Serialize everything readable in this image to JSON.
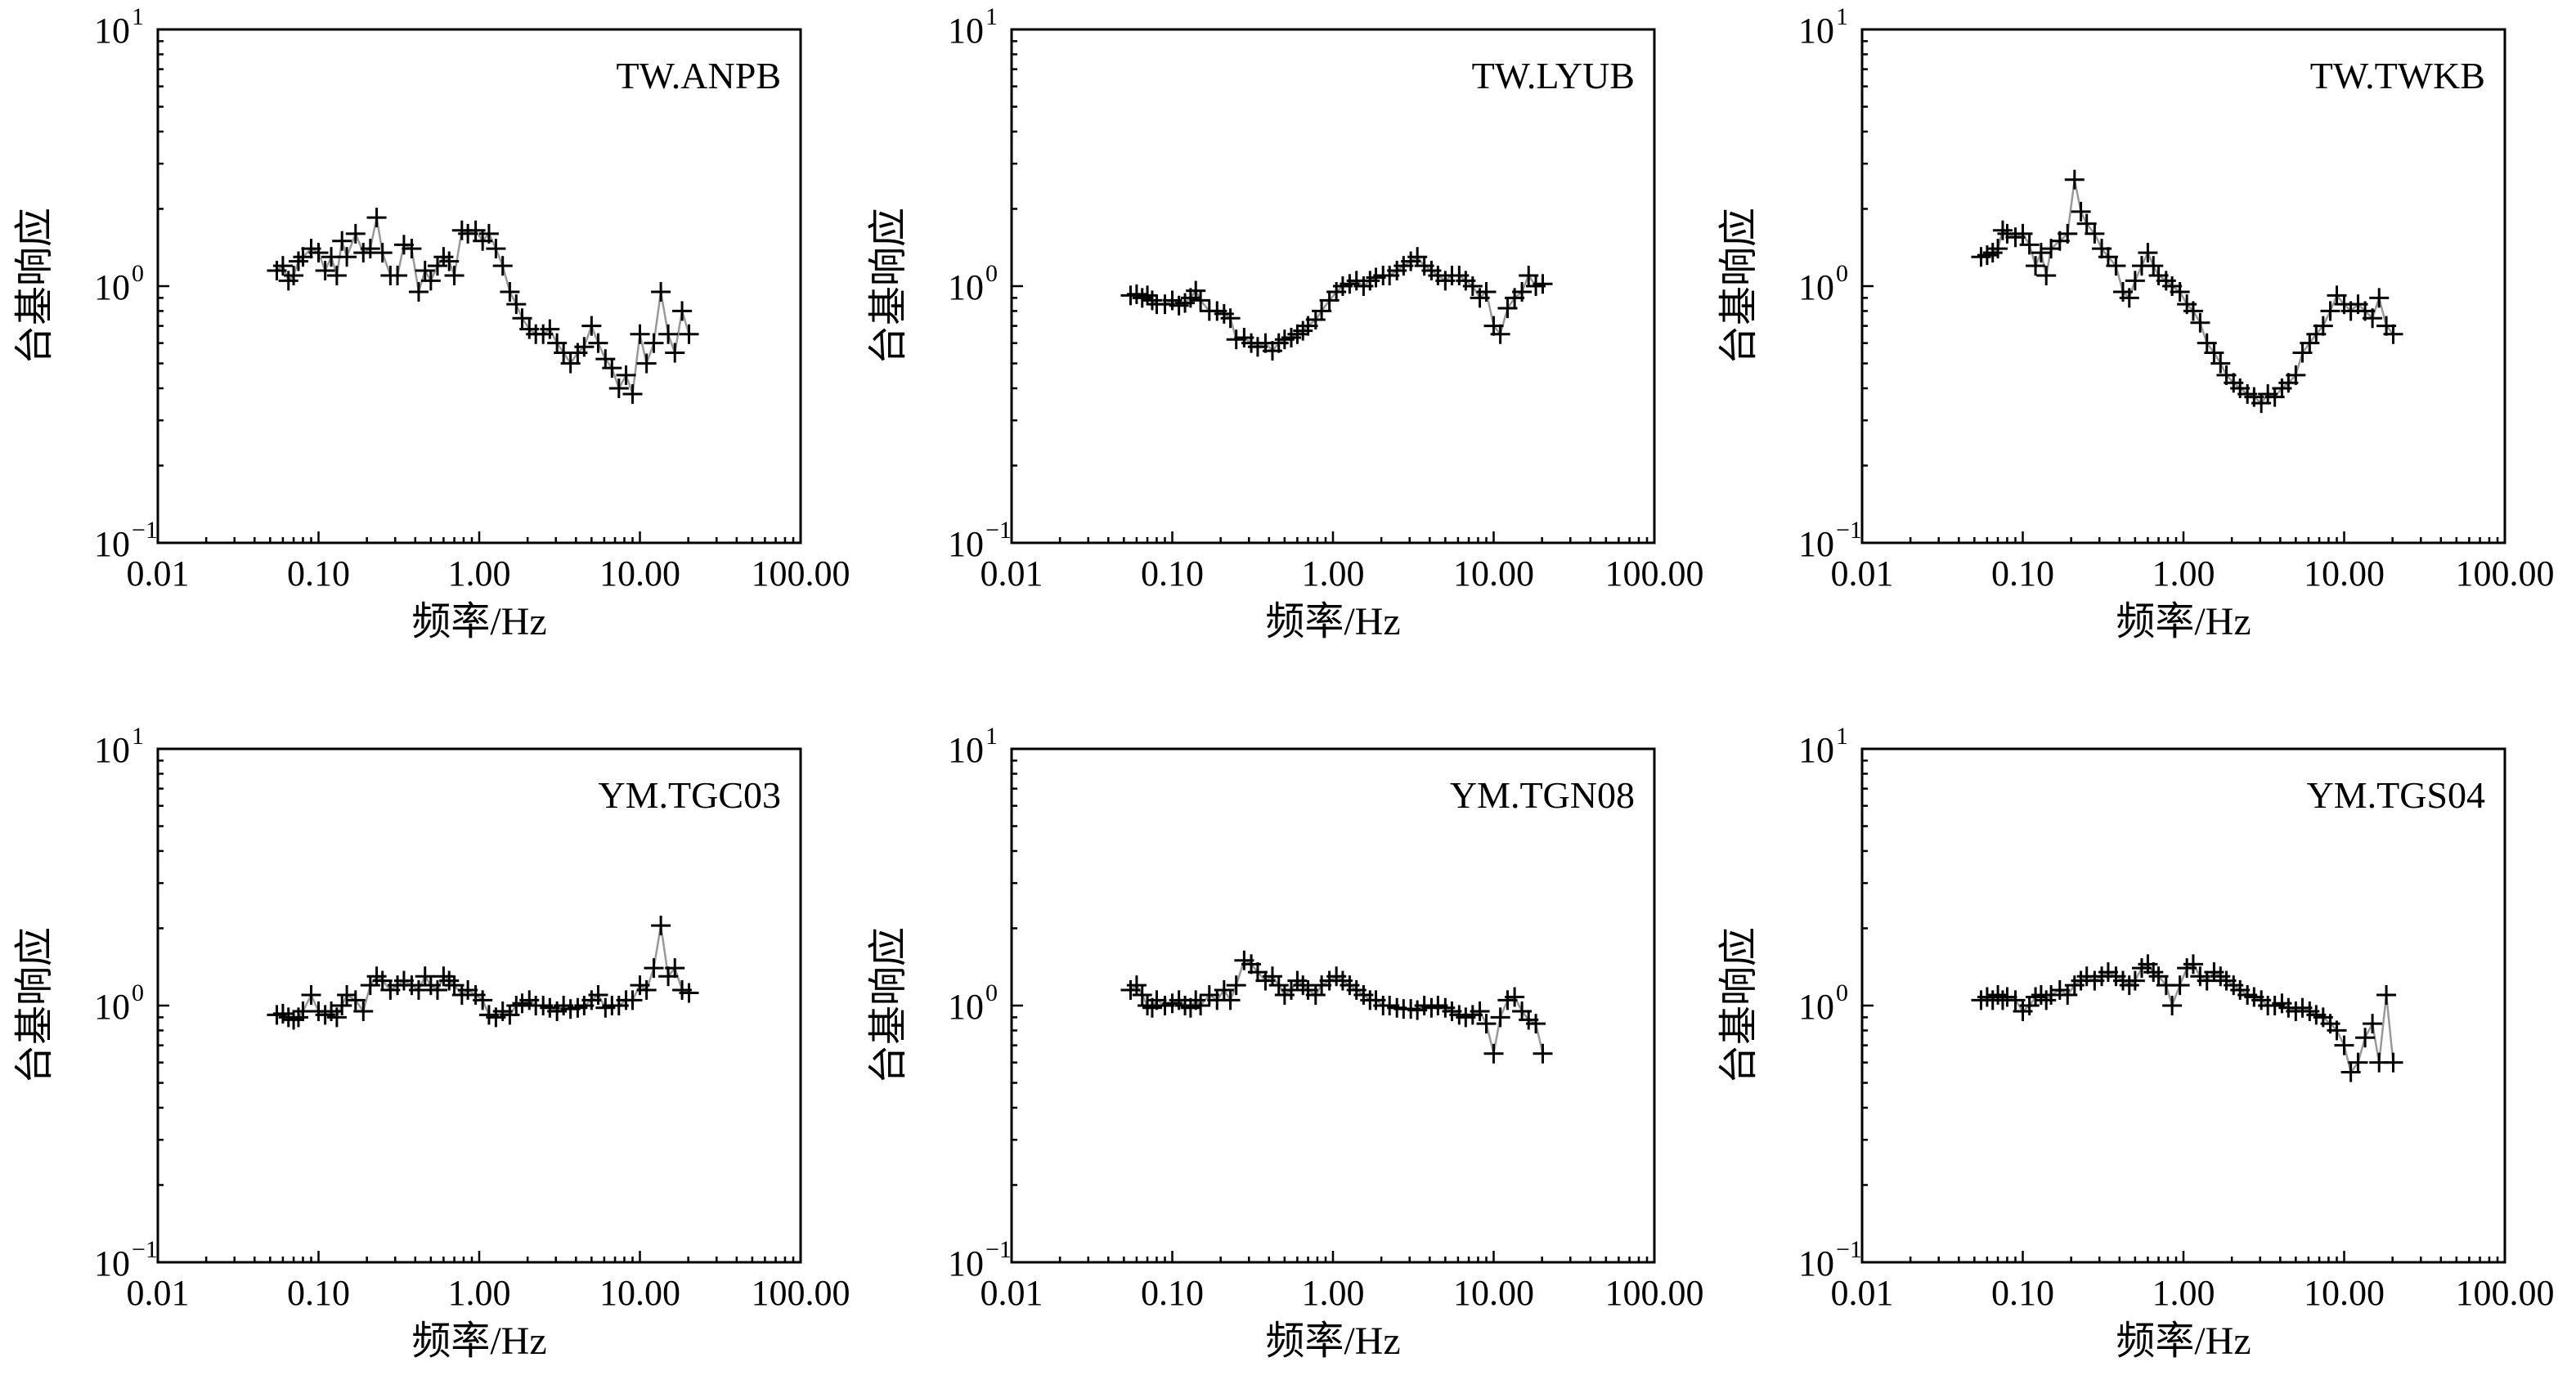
{
  "figure": {
    "xlabel": "频率/Hz",
    "ylabel": "台基响应",
    "x_ticks": [
      "0.01",
      "0.10",
      "1.00",
      "10.00",
      "100.00"
    ],
    "y_ticks": [
      {
        "base": "10",
        "exp": "−1"
      },
      {
        "base": "10",
        "exp": "0"
      },
      {
        "base": "10",
        "exp": "1"
      }
    ],
    "line_color": "#999999",
    "marker_color": "#000000",
    "marker": "plus"
  },
  "chart_data": [
    {
      "type": "scatter",
      "title": "TW.ANPB",
      "xlabel": "频率/Hz",
      "ylabel": "台基响应",
      "xscale": "log",
      "yscale": "log",
      "xlim": [
        0.01,
        100
      ],
      "ylim": [
        0.1,
        10
      ],
      "x": [
        0.055,
        0.06,
        0.065,
        0.07,
        0.075,
        0.08,
        0.09,
        0.1,
        0.11,
        0.12,
        0.13,
        0.14,
        0.15,
        0.17,
        0.19,
        0.21,
        0.23,
        0.25,
        0.28,
        0.31,
        0.34,
        0.38,
        0.42,
        0.46,
        0.5,
        0.55,
        0.6,
        0.65,
        0.7,
        0.78,
        0.85,
        0.95,
        1.05,
        1.15,
        1.27,
        1.4,
        1.55,
        1.7,
        1.85,
        2.05,
        2.25,
        2.5,
        2.75,
        3.05,
        3.35,
        3.7,
        4.1,
        4.5,
        5.0,
        5.5,
        6.1,
        6.7,
        7.4,
        8.2,
        9.0,
        10.0,
        11.0,
        12.2,
        13.5,
        15.0,
        16.5,
        18.3,
        20.2
      ],
      "y": [
        1.15,
        1.2,
        1.05,
        1.1,
        1.25,
        1.3,
        1.4,
        1.35,
        1.15,
        1.3,
        1.1,
        1.5,
        1.3,
        1.6,
        1.35,
        1.4,
        1.85,
        1.35,
        1.1,
        1.1,
        1.45,
        1.4,
        0.95,
        1.15,
        1.05,
        1.2,
        1.3,
        1.25,
        1.1,
        1.65,
        1.6,
        1.65,
        1.5,
        1.6,
        1.4,
        1.2,
        0.95,
        0.85,
        0.75,
        0.68,
        0.65,
        0.65,
        0.68,
        0.6,
        0.55,
        0.5,
        0.55,
        0.58,
        0.7,
        0.6,
        0.52,
        0.48,
        0.4,
        0.45,
        0.38,
        0.65,
        0.5,
        0.6,
        0.95,
        0.65,
        0.55,
        0.8,
        0.65
      ]
    },
    {
      "type": "scatter",
      "title": "TW.LYUB",
      "xlabel": "频率/Hz",
      "ylabel": "台基响应",
      "xscale": "log",
      "yscale": "log",
      "xlim": [
        0.01,
        100
      ],
      "ylim": [
        0.1,
        10
      ],
      "x": [
        0.055,
        0.06,
        0.065,
        0.07,
        0.075,
        0.08,
        0.09,
        0.1,
        0.11,
        0.12,
        0.13,
        0.14,
        0.15,
        0.17,
        0.19,
        0.21,
        0.23,
        0.25,
        0.28,
        0.31,
        0.34,
        0.38,
        0.42,
        0.46,
        0.5,
        0.55,
        0.6,
        0.65,
        0.7,
        0.78,
        0.85,
        0.95,
        1.05,
        1.15,
        1.27,
        1.4,
        1.55,
        1.7,
        1.85,
        2.05,
        2.25,
        2.5,
        2.75,
        3.05,
        3.35,
        3.7,
        4.1,
        4.5,
        5.0,
        5.5,
        6.1,
        6.7,
        7.4,
        8.2,
        9.0,
        10.0,
        11.0,
        12.2,
        13.5,
        15.0,
        16.5,
        18.3,
        20.2
      ],
      "y": [
        0.92,
        0.93,
        0.9,
        0.92,
        0.88,
        0.85,
        0.85,
        0.88,
        0.84,
        0.86,
        0.9,
        0.96,
        0.88,
        0.8,
        0.8,
        0.78,
        0.75,
        0.62,
        0.63,
        0.6,
        0.58,
        0.6,
        0.56,
        0.6,
        0.62,
        0.63,
        0.65,
        0.67,
        0.7,
        0.74,
        0.8,
        0.88,
        0.95,
        1.0,
        1.02,
        1.05,
        1.0,
        1.05,
        1.08,
        1.1,
        1.1,
        1.15,
        1.2,
        1.25,
        1.3,
        1.2,
        1.15,
        1.1,
        1.05,
        1.1,
        1.1,
        1.05,
        1.0,
        0.9,
        0.95,
        0.7,
        0.65,
        0.82,
        0.9,
        0.95,
        1.1,
        1.0,
        1.02
      ]
    },
    {
      "type": "scatter",
      "title": "TW.TWKB",
      "xlabel": "频率/Hz",
      "ylabel": "台基响应",
      "xscale": "log",
      "yscale": "log",
      "xlim": [
        0.01,
        100
      ],
      "ylim": [
        0.1,
        10
      ],
      "x": [
        0.055,
        0.06,
        0.065,
        0.07,
        0.075,
        0.08,
        0.09,
        0.1,
        0.11,
        0.12,
        0.13,
        0.14,
        0.15,
        0.17,
        0.19,
        0.21,
        0.23,
        0.25,
        0.28,
        0.31,
        0.34,
        0.38,
        0.42,
        0.46,
        0.5,
        0.55,
        0.6,
        0.65,
        0.7,
        0.78,
        0.85,
        0.95,
        1.05,
        1.15,
        1.27,
        1.4,
        1.55,
        1.7,
        1.85,
        2.05,
        2.25,
        2.5,
        2.75,
        3.05,
        3.35,
        3.7,
        4.1,
        4.5,
        5.0,
        5.5,
        6.1,
        6.7,
        7.4,
        8.2,
        9.0,
        10.0,
        11.0,
        12.2,
        13.5,
        15.0,
        16.5,
        18.3,
        20.2
      ],
      "y": [
        1.3,
        1.32,
        1.35,
        1.4,
        1.65,
        1.6,
        1.55,
        1.6,
        1.45,
        1.2,
        1.35,
        1.1,
        1.4,
        1.5,
        1.6,
        2.6,
        1.95,
        1.75,
        1.6,
        1.4,
        1.3,
        1.2,
        0.95,
        0.9,
        1.05,
        1.2,
        1.35,
        1.2,
        1.1,
        1.05,
        1.0,
        0.95,
        0.85,
        0.8,
        0.72,
        0.6,
        0.55,
        0.5,
        0.45,
        0.42,
        0.4,
        0.38,
        0.37,
        0.35,
        0.38,
        0.37,
        0.4,
        0.42,
        0.45,
        0.55,
        0.6,
        0.65,
        0.7,
        0.8,
        0.92,
        0.85,
        0.8,
        0.85,
        0.8,
        0.75,
        0.9,
        0.7,
        0.65
      ]
    },
    {
      "type": "scatter",
      "title": "YM.TGC03",
      "xlabel": "频率/Hz",
      "ylabel": "台基响应",
      "xscale": "log",
      "yscale": "log",
      "xlim": [
        0.01,
        100
      ],
      "ylim": [
        0.1,
        10
      ],
      "x": [
        0.055,
        0.06,
        0.065,
        0.07,
        0.075,
        0.08,
        0.09,
        0.1,
        0.11,
        0.12,
        0.13,
        0.14,
        0.15,
        0.17,
        0.19,
        0.21,
        0.23,
        0.25,
        0.28,
        0.31,
        0.34,
        0.38,
        0.42,
        0.46,
        0.5,
        0.55,
        0.6,
        0.65,
        0.7,
        0.78,
        0.85,
        0.95,
        1.05,
        1.15,
        1.27,
        1.4,
        1.55,
        1.7,
        1.85,
        2.05,
        2.25,
        2.5,
        2.75,
        3.05,
        3.35,
        3.7,
        4.1,
        4.5,
        5.0,
        5.5,
        6.1,
        6.7,
        7.4,
        8.2,
        9.0,
        10.0,
        11.0,
        12.2,
        13.5,
        15.0,
        16.5,
        18.3,
        20.2
      ],
      "y": [
        0.92,
        0.93,
        0.9,
        0.88,
        0.9,
        0.95,
        1.1,
        0.95,
        0.92,
        0.95,
        0.9,
        1.0,
        1.1,
        1.05,
        0.95,
        1.2,
        1.3,
        1.25,
        1.15,
        1.2,
        1.25,
        1.2,
        1.15,
        1.3,
        1.2,
        1.15,
        1.3,
        1.25,
        1.2,
        1.1,
        1.15,
        1.1,
        1.05,
        0.92,
        0.9,
        0.95,
        0.92,
        1.0,
        1.02,
        1.05,
        1.0,
        1.0,
        0.98,
        0.95,
        1.0,
        0.97,
        0.98,
        1.0,
        1.05,
        1.1,
        0.98,
        1.0,
        1.0,
        1.05,
        1.05,
        1.2,
        1.15,
        1.4,
        2.05,
        1.3,
        1.4,
        1.15,
        1.12
      ]
    },
    {
      "type": "scatter",
      "title": "YM.TGN08",
      "xlabel": "频率/Hz",
      "ylabel": "台基响应",
      "xscale": "log",
      "yscale": "log",
      "xlim": [
        0.01,
        100
      ],
      "ylim": [
        0.1,
        10
      ],
      "x": [
        0.055,
        0.06,
        0.065,
        0.07,
        0.075,
        0.08,
        0.09,
        0.1,
        0.11,
        0.12,
        0.13,
        0.14,
        0.15,
        0.17,
        0.19,
        0.21,
        0.23,
        0.25,
        0.28,
        0.31,
        0.34,
        0.38,
        0.42,
        0.46,
        0.5,
        0.55,
        0.6,
        0.65,
        0.7,
        0.78,
        0.85,
        0.95,
        1.05,
        1.15,
        1.27,
        1.4,
        1.55,
        1.7,
        1.85,
        2.05,
        2.25,
        2.5,
        2.75,
        3.05,
        3.35,
        3.7,
        4.1,
        4.5,
        5.0,
        5.5,
        6.1,
        6.7,
        7.4,
        8.2,
        9.0,
        10.0,
        11.0,
        12.2,
        13.5,
        15.0,
        16.5,
        18.3,
        20.2
      ],
      "y": [
        1.15,
        1.2,
        1.1,
        1.0,
        0.98,
        1.05,
        1.0,
        1.02,
        1.05,
        1.0,
        0.98,
        1.05,
        1.0,
        1.1,
        1.05,
        1.15,
        1.05,
        1.2,
        1.5,
        1.45,
        1.35,
        1.25,
        1.3,
        1.2,
        1.1,
        1.15,
        1.25,
        1.2,
        1.15,
        1.1,
        1.2,
        1.25,
        1.3,
        1.25,
        1.2,
        1.15,
        1.1,
        1.05,
        1.05,
        1.0,
        1.0,
        0.98,
        0.97,
        0.97,
        0.96,
        1.0,
        0.98,
        1.0,
        0.98,
        0.95,
        0.92,
        0.9,
        0.92,
        0.95,
        0.85,
        0.65,
        0.9,
        1.05,
        1.08,
        0.95,
        0.88,
        0.85,
        0.65
      ]
    },
    {
      "type": "scatter",
      "title": "YM.TGS04",
      "xlabel": "频率/Hz",
      "ylabel": "台基响应",
      "xscale": "log",
      "yscale": "log",
      "xlim": [
        0.01,
        100
      ],
      "ylim": [
        0.1,
        10
      ],
      "x": [
        0.055,
        0.06,
        0.065,
        0.07,
        0.075,
        0.08,
        0.09,
        0.1,
        0.11,
        0.12,
        0.13,
        0.14,
        0.15,
        0.17,
        0.19,
        0.21,
        0.23,
        0.25,
        0.28,
        0.31,
        0.34,
        0.38,
        0.42,
        0.46,
        0.5,
        0.55,
        0.6,
        0.65,
        0.7,
        0.78,
        0.85,
        0.95,
        1.05,
        1.15,
        1.27,
        1.4,
        1.55,
        1.7,
        1.85,
        2.05,
        2.25,
        2.5,
        2.75,
        3.05,
        3.35,
        3.7,
        4.1,
        4.5,
        5.0,
        5.5,
        6.1,
        6.7,
        7.4,
        8.2,
        9.0,
        10.0,
        11.0,
        12.2,
        13.5,
        15.0,
        16.5,
        18.3,
        20.2
      ],
      "y": [
        1.05,
        1.08,
        1.05,
        1.1,
        1.05,
        1.08,
        1.05,
        0.95,
        1.0,
        1.08,
        1.1,
        1.05,
        1.1,
        1.15,
        1.1,
        1.2,
        1.25,
        1.3,
        1.25,
        1.3,
        1.35,
        1.3,
        1.25,
        1.2,
        1.25,
        1.4,
        1.45,
        1.35,
        1.3,
        1.2,
        1.0,
        1.2,
        1.4,
        1.45,
        1.3,
        1.25,
        1.35,
        1.3,
        1.25,
        1.2,
        1.15,
        1.1,
        1.08,
        1.05,
        1.0,
        1.0,
        1.02,
        0.98,
        0.95,
        0.98,
        0.95,
        0.92,
        0.9,
        0.85,
        0.8,
        0.7,
        0.55,
        0.6,
        0.75,
        0.85,
        0.6,
        1.1,
        0.6
      ]
    }
  ]
}
